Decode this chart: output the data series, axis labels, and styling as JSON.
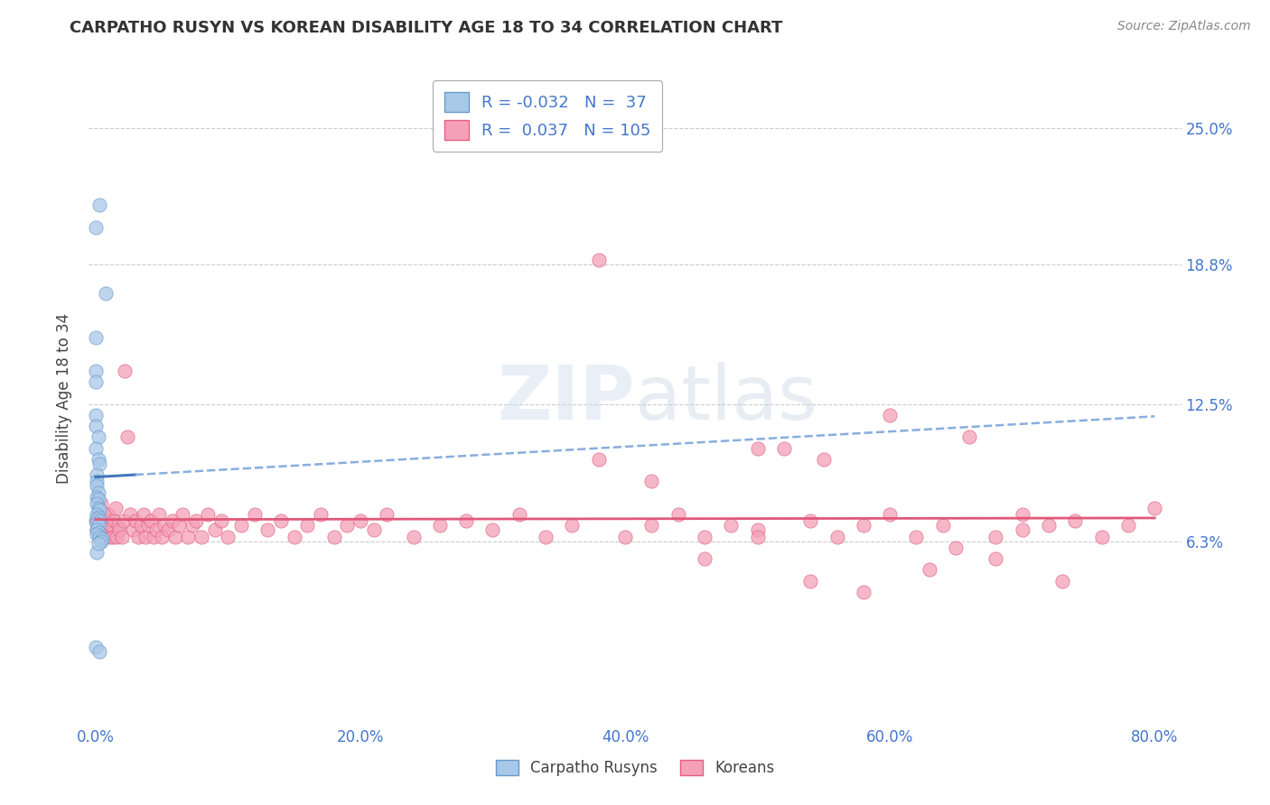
{
  "title": "CARPATHO RUSYN VS KOREAN DISABILITY AGE 18 TO 34 CORRELATION CHART",
  "source_text": "Source: ZipAtlas.com",
  "ylabel": "Disability Age 18 to 34",
  "ytick_labels": [
    "6.3%",
    "12.5%",
    "18.8%",
    "25.0%"
  ],
  "ytick_values": [
    0.063,
    0.125,
    0.188,
    0.25
  ],
  "xtick_vals": [
    0.0,
    0.2,
    0.4,
    0.6,
    0.8
  ],
  "xtick_labels": [
    "0.0%",
    "20.0%",
    "40.0%",
    "60.0%",
    "80.0%"
  ],
  "xlim": [
    -0.005,
    0.82
  ],
  "ylim": [
    -0.02,
    0.275
  ],
  "r_rusyn": -0.032,
  "n_rusyn": 37,
  "r_korean": 0.037,
  "n_korean": 105,
  "legend_label_rusyn": "Carpatho Rusyns",
  "legend_label_korean": "Koreans",
  "color_rusyn": "#A8C8E8",
  "color_korean": "#F4A0B8",
  "edge_rusyn": "#6699CC",
  "edge_korean": "#E06080",
  "trendline_rusyn_solid": "#4477BB",
  "trendline_rusyn_dash": "#88AEDD",
  "trendline_korean_color": "#E05878",
  "background_color": "#FFFFFF",
  "title_color": "#333333",
  "axis_label_color": "#444444",
  "tick_label_color": "#4477CC",
  "grid_color": "#CCCCCC",
  "watermark_color": "#DDDDDD",
  "rusyn_x": [
    0.003,
    0.0,
    0.008,
    0.0,
    0.0,
    0.0,
    0.0,
    0.0,
    0.002,
    0.0,
    0.002,
    0.003,
    0.001,
    0.001,
    0.001,
    0.002,
    0.001,
    0.002,
    0.001,
    0.002,
    0.003,
    0.001,
    0.002,
    0.001,
    0.003,
    0.001,
    0.002,
    0.001,
    0.002,
    0.001,
    0.003,
    0.005,
    0.004,
    0.0,
    0.003,
    0.001,
    0.002
  ],
  "rusyn_y": [
    0.215,
    0.205,
    0.175,
    0.155,
    0.14,
    0.135,
    0.12,
    0.115,
    0.11,
    0.105,
    0.1,
    0.098,
    0.093,
    0.09,
    0.088,
    0.085,
    0.083,
    0.082,
    0.08,
    0.078,
    0.077,
    0.075,
    0.074,
    0.073,
    0.072,
    0.071,
    0.07,
    0.068,
    0.067,
    0.066,
    0.065,
    0.064,
    0.063,
    0.015,
    0.013,
    0.058,
    0.062
  ],
  "korean_x": [
    0.0,
    0.001,
    0.002,
    0.003,
    0.004,
    0.005,
    0.006,
    0.007,
    0.008,
    0.009,
    0.01,
    0.011,
    0.012,
    0.013,
    0.014,
    0.015,
    0.016,
    0.017,
    0.018,
    0.02,
    0.021,
    0.022,
    0.024,
    0.026,
    0.028,
    0.03,
    0.032,
    0.034,
    0.036,
    0.038,
    0.04,
    0.042,
    0.044,
    0.046,
    0.048,
    0.05,
    0.052,
    0.055,
    0.058,
    0.06,
    0.063,
    0.066,
    0.07,
    0.073,
    0.076,
    0.08,
    0.085,
    0.09,
    0.095,
    0.1,
    0.11,
    0.12,
    0.13,
    0.14,
    0.15,
    0.16,
    0.17,
    0.18,
    0.19,
    0.2,
    0.21,
    0.22,
    0.24,
    0.26,
    0.28,
    0.3,
    0.32,
    0.34,
    0.36,
    0.38,
    0.4,
    0.42,
    0.44,
    0.46,
    0.48,
    0.5,
    0.52,
    0.54,
    0.56,
    0.58,
    0.6,
    0.62,
    0.64,
    0.66,
    0.68,
    0.7,
    0.72,
    0.74,
    0.76,
    0.78,
    0.8,
    0.5,
    0.55,
    0.6,
    0.65,
    0.7,
    0.38,
    0.42,
    0.46,
    0.5,
    0.54,
    0.58,
    0.63,
    0.68,
    0.73
  ],
  "korean_y": [
    0.072,
    0.068,
    0.075,
    0.065,
    0.08,
    0.07,
    0.075,
    0.065,
    0.072,
    0.068,
    0.075,
    0.065,
    0.07,
    0.065,
    0.072,
    0.078,
    0.065,
    0.07,
    0.068,
    0.065,
    0.072,
    0.14,
    0.11,
    0.075,
    0.068,
    0.072,
    0.065,
    0.07,
    0.075,
    0.065,
    0.07,
    0.072,
    0.065,
    0.068,
    0.075,
    0.065,
    0.07,
    0.068,
    0.072,
    0.065,
    0.07,
    0.075,
    0.065,
    0.07,
    0.072,
    0.065,
    0.075,
    0.068,
    0.072,
    0.065,
    0.07,
    0.075,
    0.068,
    0.072,
    0.065,
    0.07,
    0.075,
    0.065,
    0.07,
    0.072,
    0.068,
    0.075,
    0.065,
    0.07,
    0.072,
    0.068,
    0.075,
    0.065,
    0.07,
    0.19,
    0.065,
    0.07,
    0.075,
    0.065,
    0.07,
    0.068,
    0.105,
    0.072,
    0.065,
    0.07,
    0.075,
    0.065,
    0.07,
    0.11,
    0.065,
    0.075,
    0.07,
    0.072,
    0.065,
    0.07,
    0.078,
    0.105,
    0.1,
    0.12,
    0.06,
    0.068,
    0.1,
    0.09,
    0.055,
    0.065,
    0.045,
    0.04,
    0.05,
    0.055,
    0.045
  ]
}
